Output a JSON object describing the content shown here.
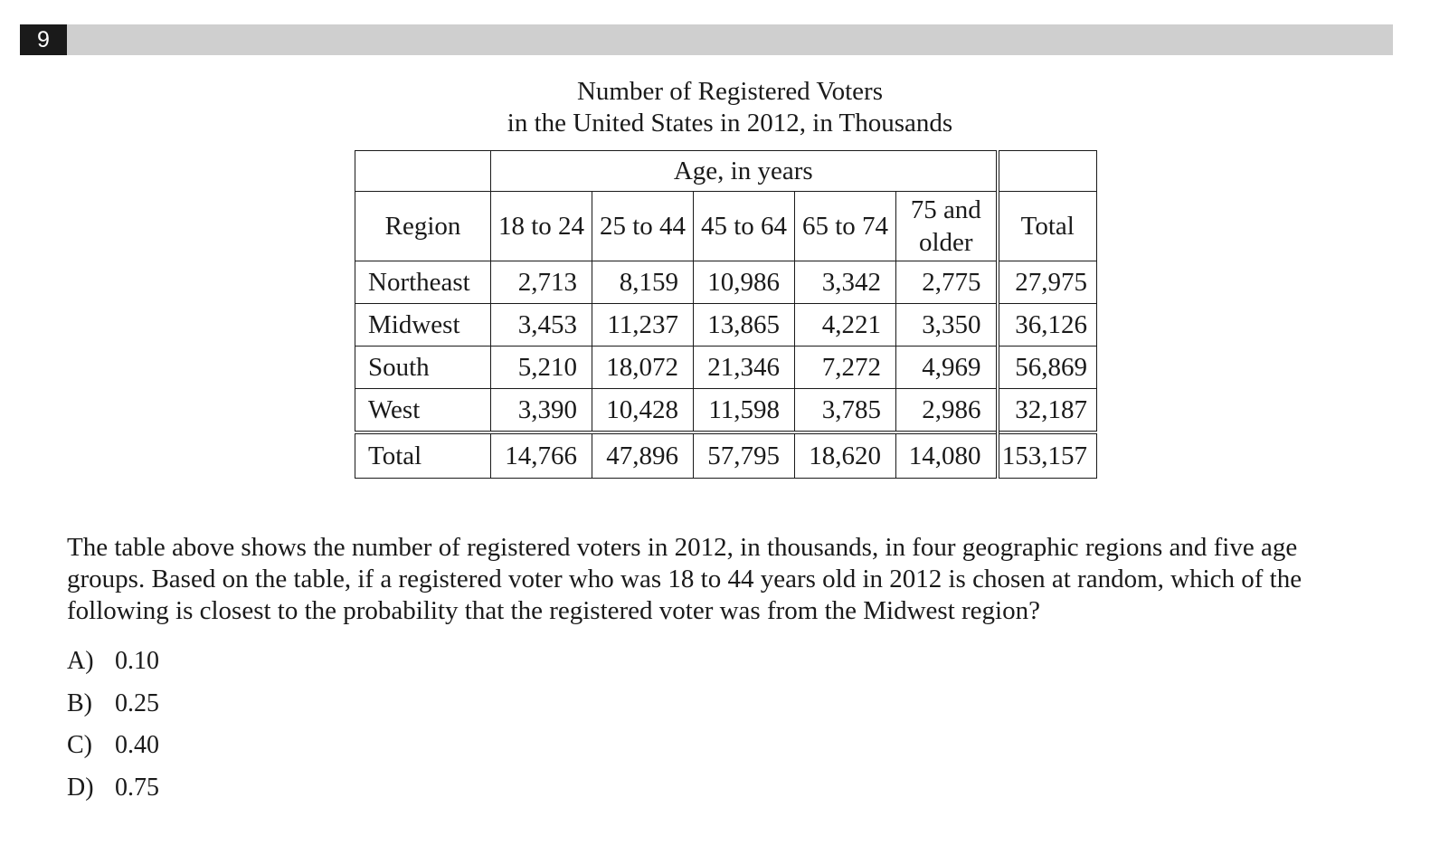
{
  "question_number": "9",
  "table": {
    "title_line1": "Number of Registered Voters",
    "title_line2": "in the United States in 2012, in Thousands",
    "age_group_header": "Age, in years",
    "region_header": "Region",
    "age_columns": [
      "18 to 24",
      "25 to 44",
      "45 to 64",
      "65 to 74",
      "75 and older"
    ],
    "age_column_75_line1": "75 and",
    "age_column_75_line2": "older",
    "total_header": "Total",
    "rows": [
      {
        "region": "Northeast",
        "values": [
          "2,713",
          "8,159",
          "10,986",
          "3,342",
          "2,775"
        ],
        "total": "27,975"
      },
      {
        "region": "Midwest",
        "values": [
          "3,453",
          "11,237",
          "13,865",
          "4,221",
          "3,350"
        ],
        "total": "36,126"
      },
      {
        "region": "South",
        "values": [
          "5,210",
          "18,072",
          "21,346",
          "7,272",
          "4,969"
        ],
        "total": "56,869"
      },
      {
        "region": "West",
        "values": [
          "3,390",
          "10,428",
          "11,598",
          "3,785",
          "2,986"
        ],
        "total": "32,187"
      }
    ],
    "total_row": {
      "region": "Total",
      "values": [
        "14,766",
        "47,896",
        "57,795",
        "18,620",
        "14,080"
      ],
      "total": "153,157"
    }
  },
  "question_text": "The table above shows the number of registered voters in 2012, in thousands, in four geographic regions and five age groups.  Based on the table, if a registered voter who was 18 to 44 years old in 2012 is chosen at random, which of the following is closest to the probability that the registered voter was from the Midwest region?",
  "choices": [
    {
      "letter": "A)",
      "text": "0.10"
    },
    {
      "letter": "B)",
      "text": "0.25"
    },
    {
      "letter": "C)",
      "text": "0.40"
    },
    {
      "letter": "D)",
      "text": "0.75"
    }
  ]
}
